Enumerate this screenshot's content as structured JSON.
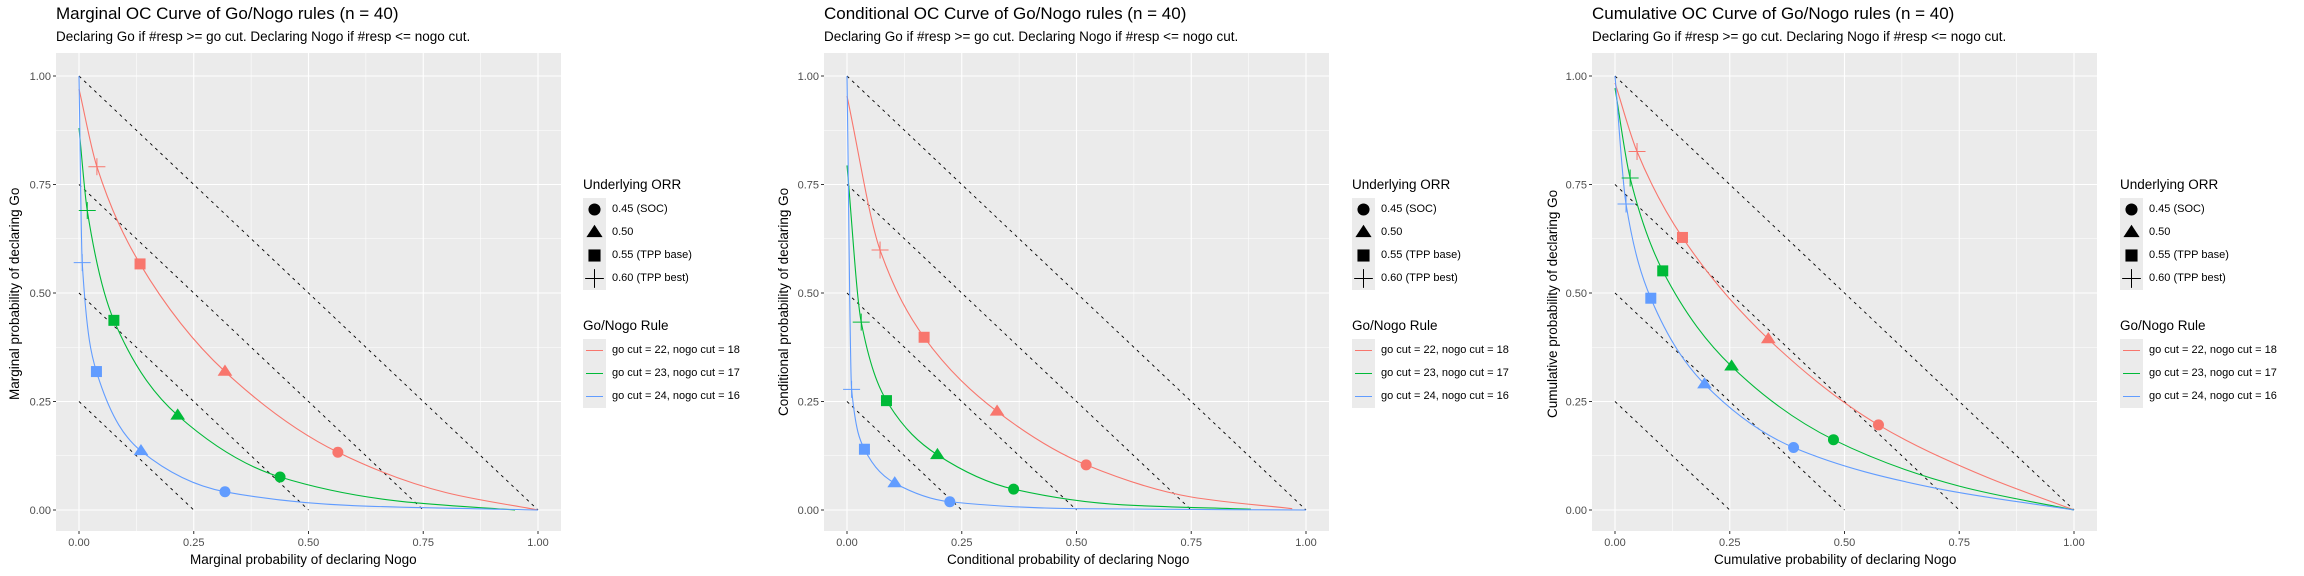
{
  "legend": {
    "shape_title": "Underlying ORR",
    "shape_items": [
      {
        "shape": "circle",
        "label": "0.45 (SOC)"
      },
      {
        "shape": "triangle",
        "label": "0.50"
      },
      {
        "shape": "square",
        "label": "0.55 (TPP base)"
      },
      {
        "shape": "cross",
        "label": "0.60 (TPP best)"
      }
    ],
    "rule_title": "Go/Nogo Rule",
    "rule_items": [
      {
        "label": "go cut = 22, nogo cut = 18",
        "color": "#f8766d"
      },
      {
        "label": "go cut = 23, nogo cut = 17",
        "color": "#00ba38"
      },
      {
        "label": "go cut = 24, nogo cut = 16",
        "color": "#619cff"
      }
    ]
  },
  "chart_data": [
    {
      "type": "scatter",
      "title": "Marginal OC Curve of Go/Nogo rules (n = 40)",
      "subtitle": "Declaring Go if #resp >= go cut. Declaring Nogo if #resp <= nogo cut.",
      "xlabel": "Marginal probability of declaring Nogo",
      "ylabel": "Marginal probability of declaring Go",
      "xlim": [
        0,
        1
      ],
      "ylim": [
        0,
        1
      ],
      "xticks": [
        "0.00",
        "0.25",
        "0.50",
        "0.75",
        "1.00"
      ],
      "yticks": [
        "0.00",
        "0.25",
        "0.50",
        "0.75",
        "1.00"
      ],
      "grid": true,
      "reference_lines": {
        "style": "dashed",
        "type": "x + y = c",
        "c": [
          0.25,
          0.5,
          0.75,
          1.0
        ]
      },
      "series": [
        {
          "name": "go cut = 22, nogo cut = 18",
          "color": "#f8766d",
          "curve": [
            [
              0.0,
              0.97
            ],
            [
              0.039,
              0.791
            ],
            [
              0.133,
              0.567
            ],
            [
              0.318,
              0.319
            ],
            [
              0.564,
              0.133
            ],
            [
              0.8,
              0.04
            ],
            [
              1.0,
              0.0
            ]
          ],
          "points": [
            {
              "orr": "0.45 (SOC)",
              "x": 0.564,
              "y": 0.133
            },
            {
              "orr": "0.50",
              "x": 0.318,
              "y": 0.319
            },
            {
              "orr": "0.55 (TPP base)",
              "x": 0.133,
              "y": 0.567
            },
            {
              "orr": "0.60 (TPP best)",
              "x": 0.039,
              "y": 0.791
            }
          ]
        },
        {
          "name": "go cut = 23, nogo cut = 17",
          "color": "#00ba38",
          "curve": [
            [
              0.0,
              0.88
            ],
            [
              0.018,
              0.69
            ],
            [
              0.076,
              0.437
            ],
            [
              0.215,
              0.218
            ],
            [
              0.438,
              0.076
            ],
            [
              0.7,
              0.02
            ],
            [
              0.95,
              0.0
            ]
          ],
          "points": [
            {
              "orr": "0.45 (SOC)",
              "x": 0.438,
              "y": 0.076
            },
            {
              "orr": "0.50",
              "x": 0.215,
              "y": 0.218
            },
            {
              "orr": "0.55 (TPP base)",
              "x": 0.076,
              "y": 0.437
            },
            {
              "orr": "0.60 (TPP best)",
              "x": 0.018,
              "y": 0.69
            }
          ]
        },
        {
          "name": "go cut = 24, nogo cut = 16",
          "color": "#619cff",
          "curve": [
            [
              0.0,
              1.0
            ],
            [
              0.007,
              0.57
            ],
            [
              0.038,
              0.319
            ],
            [
              0.135,
              0.136
            ],
            [
              0.318,
              0.042
            ],
            [
              0.6,
              0.01
            ],
            [
              1.0,
              0.0
            ]
          ],
          "points": [
            {
              "orr": "0.45 (SOC)",
              "x": 0.318,
              "y": 0.042
            },
            {
              "orr": "0.50",
              "x": 0.135,
              "y": 0.136
            },
            {
              "orr": "0.55 (TPP base)",
              "x": 0.038,
              "y": 0.319
            },
            {
              "orr": "0.60 (TPP best)",
              "x": 0.007,
              "y": 0.57
            }
          ]
        }
      ]
    },
    {
      "type": "scatter",
      "title": "Conditional OC Curve of Go/Nogo rules (n = 40)",
      "subtitle": "Declaring Go if #resp >= go cut. Declaring Nogo if #resp <= nogo cut.",
      "xlabel": "Conditional probability of declaring Nogo",
      "ylabel": "Conditional probability of declaring Go",
      "xlim": [
        0,
        1
      ],
      "ylim": [
        0,
        1
      ],
      "xticks": [
        "0.00",
        "0.25",
        "0.50",
        "0.75",
        "1.00"
      ],
      "yticks": [
        "0.00",
        "0.25",
        "0.50",
        "0.75",
        "1.00"
      ],
      "grid": true,
      "reference_lines": {
        "style": "dashed",
        "type": "x + y = c",
        "c": [
          0.25,
          0.5,
          0.75,
          1.0
        ]
      },
      "series": [
        {
          "name": "go cut = 22, nogo cut = 18",
          "color": "#f8766d",
          "curve": [
            [
              0.0,
              0.954
            ],
            [
              0.072,
              0.599
            ],
            [
              0.168,
              0.398
            ],
            [
              0.327,
              0.227
            ],
            [
              0.521,
              0.104
            ],
            [
              0.75,
              0.03
            ],
            [
              0.97,
              0.003
            ]
          ],
          "points": [
            {
              "orr": "0.45 (SOC)",
              "x": 0.521,
              "y": 0.104
            },
            {
              "orr": "0.50",
              "x": 0.327,
              "y": 0.227
            },
            {
              "orr": "0.55 (TPP base)",
              "x": 0.168,
              "y": 0.398
            },
            {
              "orr": "0.60 (TPP best)",
              "x": 0.072,
              "y": 0.599
            }
          ]
        },
        {
          "name": "go cut = 23, nogo cut = 17",
          "color": "#00ba38",
          "curve": [
            [
              0.0,
              0.794
            ],
            [
              0.031,
              0.433
            ],
            [
              0.086,
              0.252
            ],
            [
              0.197,
              0.127
            ],
            [
              0.363,
              0.048
            ],
            [
              0.6,
              0.012
            ],
            [
              0.88,
              0.002
            ]
          ],
          "points": [
            {
              "orr": "0.45 (SOC)",
              "x": 0.363,
              "y": 0.048
            },
            {
              "orr": "0.50",
              "x": 0.197,
              "y": 0.127
            },
            {
              "orr": "0.55 (TPP base)",
              "x": 0.086,
              "y": 0.252
            },
            {
              "orr": "0.60 (TPP best)",
              "x": 0.031,
              "y": 0.433
            }
          ]
        },
        {
          "name": "go cut = 24, nogo cut = 16",
          "color": "#619cff",
          "curve": [
            [
              0.0,
              1.0
            ],
            [
              0.01,
              0.278
            ],
            [
              0.038,
              0.14
            ],
            [
              0.104,
              0.062
            ],
            [
              0.224,
              0.019
            ],
            [
              0.5,
              0.003
            ],
            [
              1.0,
              0.0
            ]
          ],
          "points": [
            {
              "orr": "0.45 (SOC)",
              "x": 0.224,
              "y": 0.019
            },
            {
              "orr": "0.50",
              "x": 0.104,
              "y": 0.062
            },
            {
              "orr": "0.55 (TPP base)",
              "x": 0.038,
              "y": 0.14
            },
            {
              "orr": "0.60 (TPP best)",
              "x": 0.01,
              "y": 0.278
            }
          ]
        }
      ]
    },
    {
      "type": "scatter",
      "title": "Cumulative OC Curve of Go/Nogo rules (n = 40)",
      "subtitle": "Declaring Go if #resp >= go cut. Declaring Nogo if #resp <= nogo cut.",
      "xlabel": "Cumulative probability of declaring Nogo",
      "ylabel": "Cumulative probability of declaring Go",
      "xlim": [
        0,
        1
      ],
      "ylim": [
        0,
        1
      ],
      "xticks": [
        "0.00",
        "0.25",
        "0.50",
        "0.75",
        "1.00"
      ],
      "yticks": [
        "0.00",
        "0.25",
        "0.50",
        "0.75",
        "1.00"
      ],
      "grid": true,
      "reference_lines": {
        "style": "dashed",
        "type": "x + y = c",
        "c": [
          0.25,
          0.5,
          0.75,
          1.0
        ]
      },
      "series": [
        {
          "name": "go cut = 22, nogo cut = 18",
          "color": "#f8766d",
          "curve": [
            [
              0.0,
              0.984
            ],
            [
              0.048,
              0.826
            ],
            [
              0.147,
              0.628
            ],
            [
              0.334,
              0.394
            ],
            [
              0.574,
              0.196
            ],
            [
              0.8,
              0.08
            ],
            [
              1.0,
              0.0
            ]
          ],
          "points": [
            {
              "orr": "0.45 (SOC)",
              "x": 0.574,
              "y": 0.196
            },
            {
              "orr": "0.50",
              "x": 0.334,
              "y": 0.394
            },
            {
              "orr": "0.55 (TPP base)",
              "x": 0.147,
              "y": 0.628
            },
            {
              "orr": "0.60 (TPP best)",
              "x": 0.048,
              "y": 0.826
            }
          ]
        },
        {
          "name": "go cut = 23, nogo cut = 17",
          "color": "#00ba38",
          "curve": [
            [
              0.0,
              0.972
            ],
            [
              0.033,
              0.765
            ],
            [
              0.104,
              0.551
            ],
            [
              0.254,
              0.331
            ],
            [
              0.476,
              0.162
            ],
            [
              0.75,
              0.055
            ],
            [
              1.0,
              0.0
            ]
          ],
          "points": [
            {
              "orr": "0.45 (SOC)",
              "x": 0.476,
              "y": 0.162
            },
            {
              "orr": "0.50",
              "x": 0.254,
              "y": 0.331
            },
            {
              "orr": "0.55 (TPP base)",
              "x": 0.104,
              "y": 0.551
            },
            {
              "orr": "0.60 (TPP best)",
              "x": 0.033,
              "y": 0.765
            }
          ]
        },
        {
          "name": "go cut = 24, nogo cut = 16",
          "color": "#619cff",
          "curve": [
            [
              0.0,
              1.0
            ],
            [
              0.024,
              0.705
            ],
            [
              0.078,
              0.488
            ],
            [
              0.195,
              0.29
            ],
            [
              0.389,
              0.144
            ],
            [
              0.7,
              0.05
            ],
            [
              1.0,
              0.0
            ]
          ],
          "points": [
            {
              "orr": "0.45 (SOC)",
              "x": 0.389,
              "y": 0.144
            },
            {
              "orr": "0.50",
              "x": 0.195,
              "y": 0.29
            },
            {
              "orr": "0.55 (TPP base)",
              "x": 0.078,
              "y": 0.488
            },
            {
              "orr": "0.60 (TPP best)",
              "x": 0.024,
              "y": 0.705
            }
          ]
        }
      ]
    }
  ]
}
